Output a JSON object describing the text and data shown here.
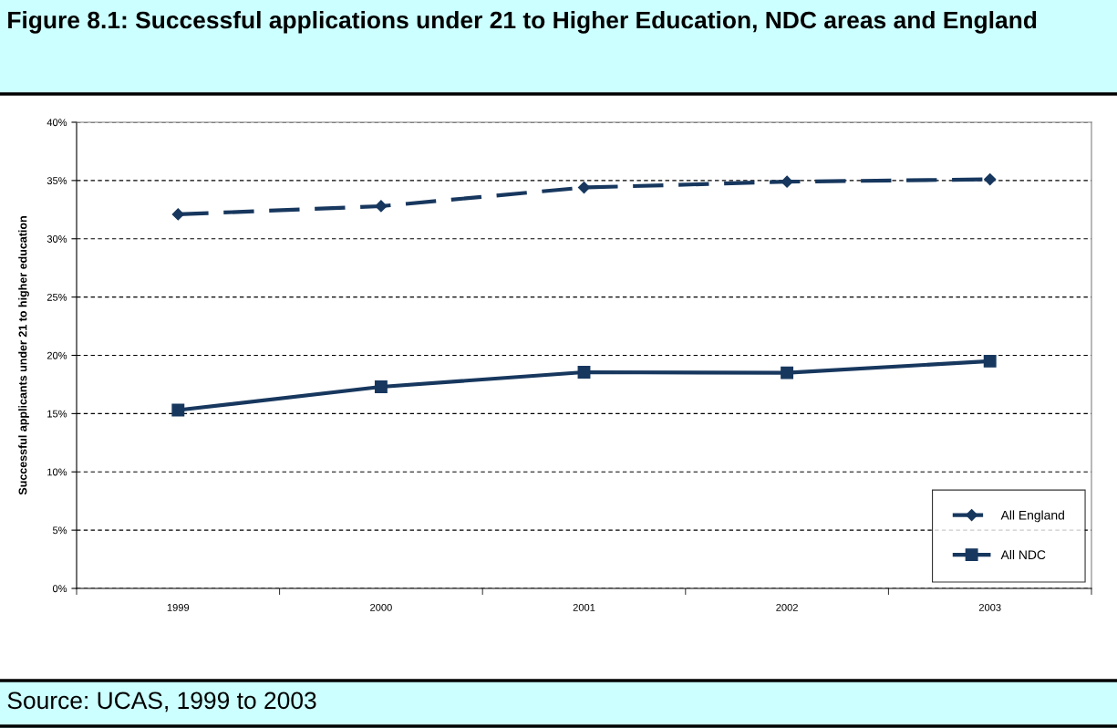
{
  "chart_data": {
    "type": "line",
    "title": "Figure 8.1: Successful applications under 21 to Higher Education, NDC areas and England",
    "ylabel": "Successful applicants under 21 to higher education",
    "annotations": [
      "Source: UCAS, 1999 to 2003"
    ],
    "categories": [
      "1999",
      "2000",
      "2001",
      "2002",
      "2003"
    ],
    "series": [
      {
        "name": "All England",
        "color": "#17375e",
        "values": [
          32.1,
          32.8,
          34.4,
          34.9,
          35.1
        ],
        "marker": "diamond",
        "line_style": "dashed"
      },
      {
        "name": "All NDC",
        "color": "#17375e",
        "values": [
          15.3,
          17.3,
          18.55,
          18.5,
          19.5
        ],
        "marker": "square",
        "line_style": "solid"
      }
    ],
    "ylim": [
      0,
      40
    ],
    "yticks": [
      {
        "value": 0,
        "label": "0%"
      },
      {
        "value": 5,
        "label": "5%"
      },
      {
        "value": 10,
        "label": "10%"
      },
      {
        "value": 15,
        "label": "15%"
      },
      {
        "value": 20,
        "label": "20%"
      },
      {
        "value": 25,
        "label": "25%"
      },
      {
        "value": 30,
        "label": "30%"
      },
      {
        "value": 35,
        "label": "35%"
      },
      {
        "value": 40,
        "label": "40%"
      }
    ],
    "grid": "y",
    "legend": "bottom right"
  }
}
